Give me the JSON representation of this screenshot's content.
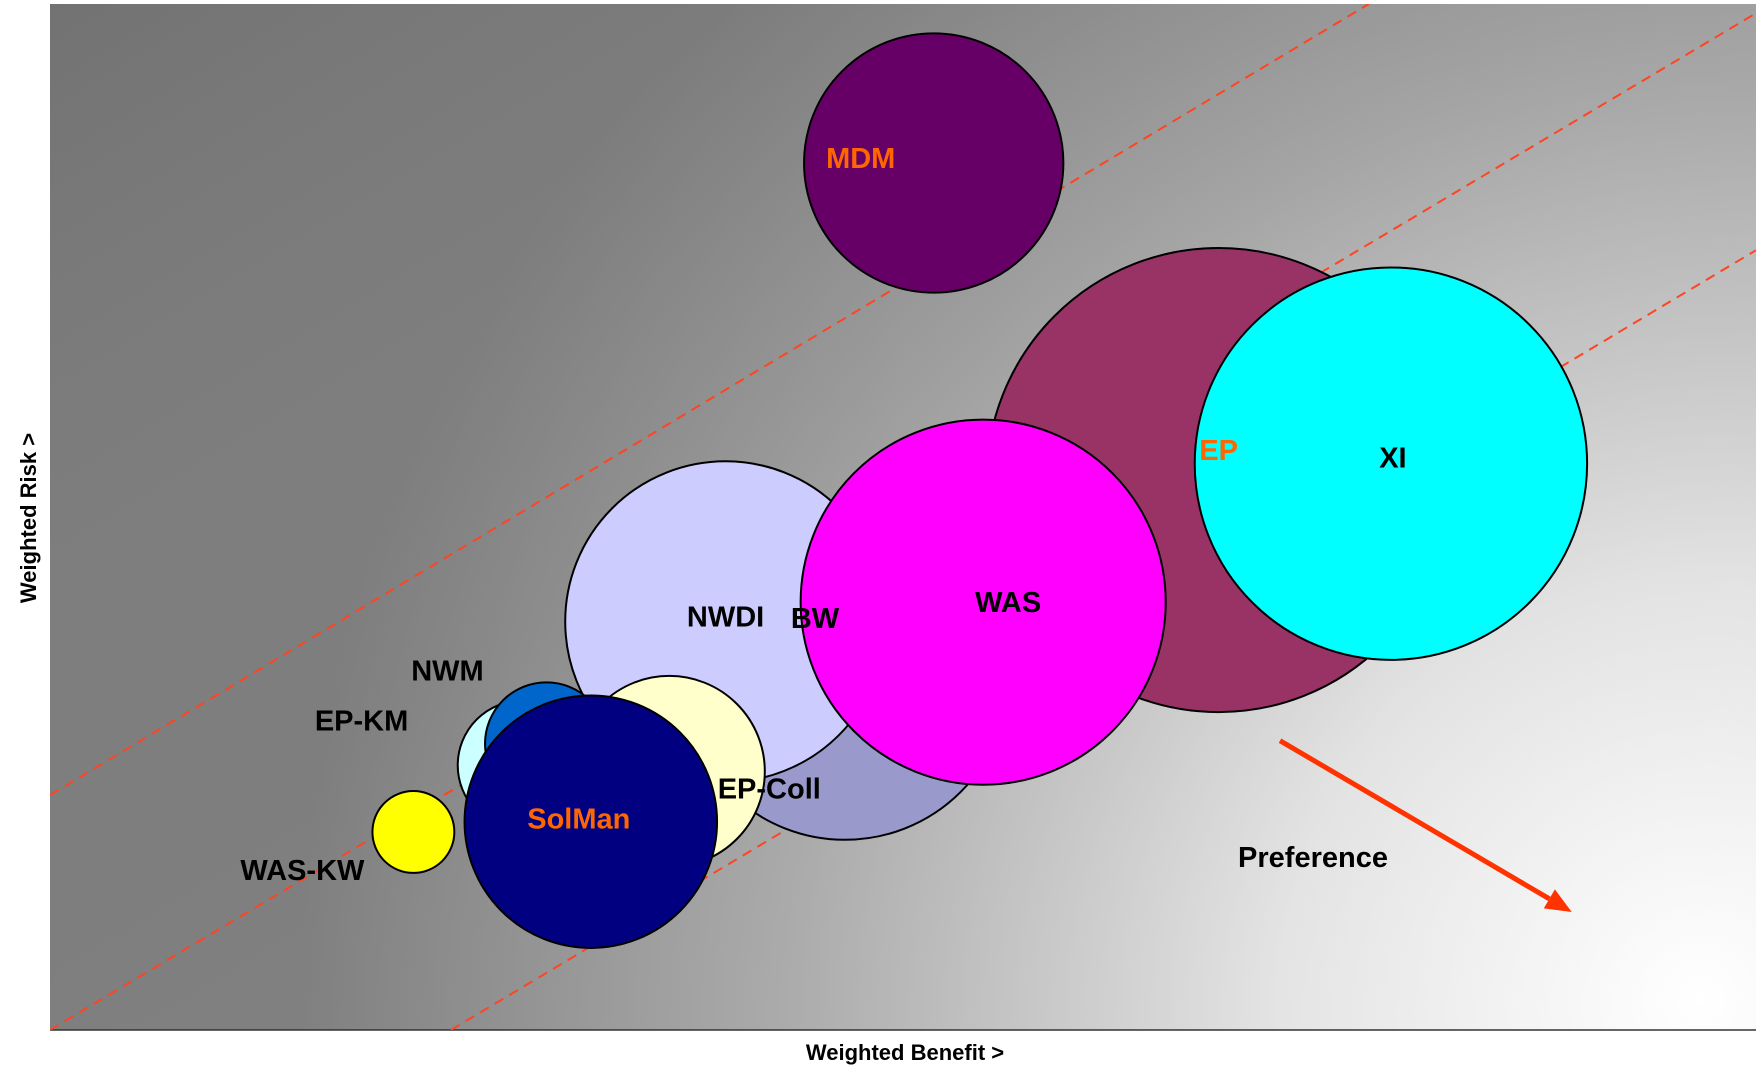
{
  "chart_data": {
    "type": "bubble",
    "title": "",
    "xlabel": "Weighted Benefit >",
    "ylabel": "Weighted Risk >",
    "xlim": [
      0,
      100
    ],
    "ylim": [
      0,
      100
    ],
    "grid": false,
    "legend": "none",
    "background": {
      "style": "radial-gradient",
      "light_corner": "bottom-right",
      "dark_corner": "top-left"
    },
    "series": [
      {
        "label": "MDM",
        "x": 51.8,
        "y": 84.5,
        "size": 7.6,
        "color": "#660066",
        "label_color": "#FF6600"
      },
      {
        "label": "EP",
        "x": 68.5,
        "y": 53.6,
        "size": 13.6,
        "color": "#993366",
        "label_color": "#FF6600"
      },
      {
        "label": "XI",
        "x": 78.6,
        "y": 55.2,
        "size": 11.5,
        "color": "#00FFFF",
        "label_color": "#000000"
      },
      {
        "label": "WAS",
        "x": 54.7,
        "y": 41.7,
        "size": 10.7,
        "color": "#FF00FF",
        "label_color": "#000000"
      },
      {
        "label": "BW",
        "x": 46.6,
        "y": 34.5,
        "size": 9.6,
        "color": "#9999CC",
        "label_color": "#000000"
      },
      {
        "label": "NWDI",
        "x": 39.6,
        "y": 39.8,
        "size": 9.4,
        "color": "#CCCCFF",
        "label_color": "#000000"
      },
      {
        "label": "EP-Coll",
        "x": 36.3,
        "y": 25.2,
        "size": 5.6,
        "color": "#FFFFCC",
        "label_color": "#000000"
      },
      {
        "label": "EP-KM",
        "x": 27.7,
        "y": 25.8,
        "size": 3.8,
        "color": "#CCFFFF",
        "label_color": "#000000"
      },
      {
        "label": "NWM",
        "x": 29.1,
        "y": 27.9,
        "size": 3.6,
        "color": "#0066CC",
        "label_color": "#000000"
      },
      {
        "label": "SolMan",
        "x": 31.7,
        "y": 20.3,
        "size": 7.4,
        "color": "#000080",
        "label_color": "#FF6600"
      },
      {
        "label": "WAS-KW",
        "x": 21.3,
        "y": 19.3,
        "size": 2.4,
        "color": "#FFFF00",
        "label_color": "#000000"
      }
    ],
    "trend_lines": [
      {
        "from": [
          0,
          22.9
        ],
        "to": [
          77.3,
          100
        ],
        "style": "dashed",
        "color": "#FF4422"
      },
      {
        "from": [
          0,
          0
        ],
        "to": [
          100,
          99.1
        ],
        "style": "dashed",
        "color": "#FF4422"
      },
      {
        "from": [
          23.5,
          0
        ],
        "to": [
          100,
          76.0
        ],
        "style": "dashed",
        "color": "#FF4422"
      }
    ],
    "annotations": [
      {
        "text": "Preference",
        "arrow": {
          "from": [
            72.1,
            28.2
          ],
          "to": [
            89.2,
            11.5
          ],
          "color": "#FF3300"
        }
      }
    ]
  }
}
